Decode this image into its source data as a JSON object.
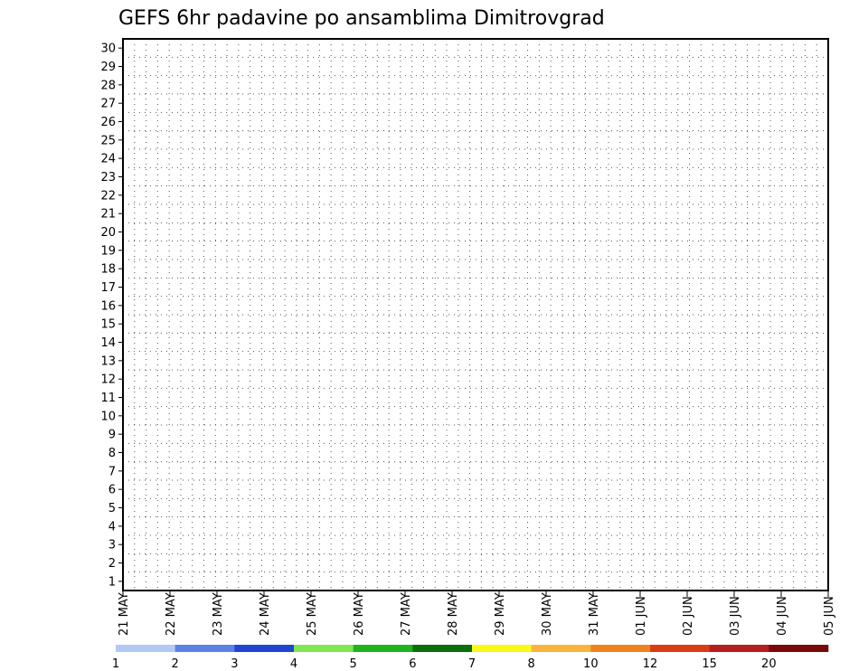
{
  "chart_data": {
    "type": "heatmap",
    "title": "GEFS 6hr padavine po ansamblima Dimitrovgrad",
    "xlabel": "",
    "ylabel": "",
    "y_categories": [
      "1",
      "2",
      "3",
      "4",
      "5",
      "6",
      "7",
      "8",
      "9",
      "10",
      "11",
      "12",
      "13",
      "14",
      "15",
      "16",
      "17",
      "18",
      "19",
      "20",
      "21",
      "22",
      "23",
      "24",
      "25",
      "26",
      "27",
      "28",
      "29",
      "30"
    ],
    "x_tick_labels": [
      "21 MAY",
      "22 MAY",
      "23 MAY",
      "24 MAY",
      "25 MAY",
      "26 MAY",
      "27 MAY",
      "28 MAY",
      "29 MAY",
      "30 MAY",
      "31 MAY",
      "01 JUN",
      "02 JUN",
      "03 JUN",
      "04 JUN",
      "05 JUN"
    ],
    "x_steps_per_day": 4,
    "grid": "dotted",
    "legend": {
      "position": "bottom",
      "labels": [
        "1",
        "2",
        "3",
        "4",
        "5",
        "6",
        "7",
        "8",
        "10",
        "12",
        "15",
        "20"
      ],
      "colors": [
        "#b4c8f5",
        "#5a82e6",
        "#1e46d2",
        "#82e650",
        "#1eb41e",
        "#0a6e0a",
        "#fafa14",
        "#fab43c",
        "#f0821e",
        "#dc3c14",
        "#b41e1e",
        "#7a0a0a"
      ]
    },
    "cell_code_key": "0 = no precipitation; 1..12 = color classes of legend.colors",
    "rows": [
      "000000000000000000000000000000000000000000000000000000000000000000000000000000000000000",
      "000000000000000000000000000000000000000000000000000000000000000000000000000000000000000",
      "000000000000000000000000000000000000000000000000000000000000000000000000000000000000000",
      "000000000000000000000000000000000000000000000000000000000000000000000000000000000000000",
      "000000000000000000000000000000000000000000000000000000000000000000000000000000000000000",
      "000000000000000000000000000000000000000000000000000000000000000000000000000000000000000",
      "000000000000000000000000000000000000000000000000000000000000000000000000000000000000000",
      "000000000000000000000000000000000000000000000000000000000000000000000000000000000000000",
      "000000000000000000000000000000000000000000000000000000000000000000000000000000000000000",
      "000000000000000000000000000000000000000000000000000000000000000000000000000000000000000",
      "000000000000000000000000000000000000000000000000000000000000000000000000000000000000000",
      "000000000000000000000000000000000000000000000000000000000000000000000000000000000000000",
      "000000000000000000000000000000000000000000000000000000000000000000000000000000000000000",
      "000000000000000000000000000000000000000000000000000000000000000000000000000000000000000",
      "000000000000000000000000000000000000000000000000000000000000000000000000000000000000000",
      "000000000000000000000000000000000000000000000000000000000000000000000000000000000000000",
      "000000000000000000000000000000000000000000000000000000000000000000000000000000000000000",
      "000000000000000000000000000000000000000000000000000000000000000000000000000000000000000",
      "000000000000000000000000000000000000000000000000000000000000000000000000000000000000000",
      "000000000000000000000000000000000000000000000000000000000000000000000000000000000000000",
      "000000000000000000000000000000000000000000000000000000000000000000000000000000000000000",
      "000000000000000000000000000000000000000000000000000000000000000000000000000000000000000",
      "000000000000000000000000000000000000000000000000000000000000000000000000000000000000000",
      "000000000000000000000000000000000000000000000000000000000000000000000000000000000000000",
      "000000000000000000000000000000000000000000000000000000000000000000000000000000000000000",
      "000000000000000000000000000000000000000000000000000000000000000000000000000000000000000",
      "000000000000000000000000000000000000000000000000000000000000000000000000000000000000000",
      "000000000000000000000000000000000000000000000000000000000000000000000000000000000000000",
      "000000000000000000000000000000000000000000000000000000000000000000000000000000000000000",
      "000000000000000000000000000000000000000000000000000000000000000000000000000000000000000"
    ]
  }
}
